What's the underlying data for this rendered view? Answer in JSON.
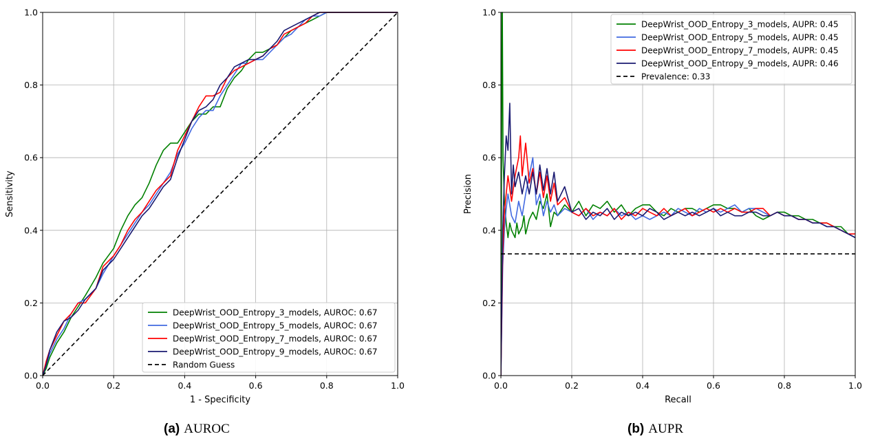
{
  "captions": {
    "a": {
      "tag": "(a)",
      "text": "AUROC"
    },
    "b": {
      "tag": "(b)",
      "text": "AUPR"
    }
  },
  "colors": {
    "green": "#008000",
    "blue": "#4169e1",
    "red": "#ff0000",
    "navy": "#191970",
    "black": "#000000",
    "grid": "#b0b0b0"
  },
  "chart_data": [
    {
      "type": "line",
      "title": "",
      "xlabel": "1 - Specificity",
      "ylabel": "Sensitivity",
      "xlim": [
        0,
        1
      ],
      "ylim": [
        0,
        1
      ],
      "xticks": [
        "0.0",
        "0.2",
        "0.4",
        "0.6",
        "0.8",
        "1.0"
      ],
      "yticks": [
        "0.0",
        "0.2",
        "0.4",
        "0.6",
        "0.8",
        "1.0"
      ],
      "grid": true,
      "legend_position": "lower-right",
      "series": [
        {
          "name": "DeepWrist_OOD_Entropy_3_models, AUROC: 0.67",
          "color": "#008000",
          "dash": false,
          "x": [
            0,
            0.01,
            0.02,
            0.04,
            0.06,
            0.08,
            0.1,
            0.12,
            0.15,
            0.17,
            0.2,
            0.22,
            0.24,
            0.26,
            0.28,
            0.3,
            0.32,
            0.34,
            0.36,
            0.38,
            0.4,
            0.42,
            0.44,
            0.46,
            0.48,
            0.5,
            0.52,
            0.54,
            0.56,
            0.58,
            0.6,
            0.62,
            0.64,
            0.66,
            0.68,
            0.7,
            0.72,
            0.74,
            0.76,
            0.78,
            0.8,
            0.82,
            1.0
          ],
          "y": [
            0,
            0.02,
            0.05,
            0.09,
            0.12,
            0.16,
            0.19,
            0.22,
            0.27,
            0.31,
            0.35,
            0.4,
            0.44,
            0.47,
            0.49,
            0.53,
            0.58,
            0.62,
            0.64,
            0.64,
            0.67,
            0.7,
            0.72,
            0.72,
            0.74,
            0.74,
            0.79,
            0.82,
            0.84,
            0.87,
            0.89,
            0.89,
            0.9,
            0.91,
            0.93,
            0.95,
            0.96,
            0.97,
            0.98,
            0.99,
            1.0,
            1.0,
            1.0
          ]
        },
        {
          "name": "DeepWrist_OOD_Entropy_5_models, AUROC: 0.67",
          "color": "#4169e1",
          "dash": false,
          "x": [
            0,
            0.01,
            0.02,
            0.04,
            0.06,
            0.08,
            0.1,
            0.12,
            0.15,
            0.17,
            0.2,
            0.22,
            0.24,
            0.26,
            0.28,
            0.3,
            0.32,
            0.34,
            0.36,
            0.38,
            0.4,
            0.42,
            0.44,
            0.46,
            0.48,
            0.5,
            0.52,
            0.54,
            0.56,
            0.58,
            0.6,
            0.62,
            0.64,
            0.66,
            0.68,
            0.7,
            0.72,
            0.74,
            0.76,
            0.78,
            0.8,
            0.82,
            1.0
          ],
          "y": [
            0,
            0.03,
            0.06,
            0.1,
            0.13,
            0.17,
            0.2,
            0.21,
            0.24,
            0.28,
            0.33,
            0.36,
            0.39,
            0.42,
            0.45,
            0.47,
            0.5,
            0.53,
            0.56,
            0.61,
            0.64,
            0.68,
            0.71,
            0.73,
            0.73,
            0.77,
            0.8,
            0.83,
            0.86,
            0.86,
            0.87,
            0.87,
            0.89,
            0.91,
            0.93,
            0.94,
            0.96,
            0.98,
            0.99,
            0.99,
            1.0,
            1.0,
            1.0
          ]
        },
        {
          "name": "DeepWrist_OOD_Entropy_7_models, AUROC: 0.67",
          "color": "#ff0000",
          "dash": false,
          "x": [
            0,
            0.01,
            0.02,
            0.04,
            0.06,
            0.08,
            0.1,
            0.12,
            0.15,
            0.17,
            0.2,
            0.22,
            0.24,
            0.26,
            0.28,
            0.3,
            0.32,
            0.34,
            0.36,
            0.38,
            0.4,
            0.42,
            0.44,
            0.46,
            0.48,
            0.5,
            0.52,
            0.54,
            0.56,
            0.58,
            0.6,
            0.62,
            0.64,
            0.66,
            0.68,
            0.7,
            0.72,
            0.74,
            0.76,
            0.78,
            0.8,
            0.82,
            1.0
          ],
          "y": [
            0,
            0.04,
            0.07,
            0.11,
            0.15,
            0.17,
            0.2,
            0.2,
            0.24,
            0.3,
            0.33,
            0.36,
            0.4,
            0.43,
            0.45,
            0.48,
            0.51,
            0.53,
            0.55,
            0.62,
            0.66,
            0.7,
            0.74,
            0.77,
            0.77,
            0.78,
            0.82,
            0.84,
            0.85,
            0.86,
            0.87,
            0.88,
            0.9,
            0.91,
            0.94,
            0.95,
            0.96,
            0.97,
            0.99,
            1.0,
            1.0,
            1.0,
            1.0
          ]
        },
        {
          "name": "DeepWrist_OOD_Entropy_9_models, AUROC: 0.67",
          "color": "#191970",
          "dash": false,
          "x": [
            0,
            0.01,
            0.02,
            0.04,
            0.06,
            0.08,
            0.1,
            0.12,
            0.15,
            0.17,
            0.2,
            0.22,
            0.24,
            0.26,
            0.28,
            0.3,
            0.32,
            0.34,
            0.36,
            0.38,
            0.4,
            0.42,
            0.44,
            0.46,
            0.48,
            0.5,
            0.52,
            0.54,
            0.56,
            0.58,
            0.6,
            0.62,
            0.64,
            0.66,
            0.68,
            0.7,
            0.72,
            0.74,
            0.76,
            0.78,
            0.8,
            0.82,
            1.0
          ],
          "y": [
            0,
            0.03,
            0.07,
            0.12,
            0.15,
            0.16,
            0.18,
            0.21,
            0.24,
            0.29,
            0.32,
            0.35,
            0.38,
            0.41,
            0.44,
            0.46,
            0.49,
            0.52,
            0.54,
            0.6,
            0.65,
            0.7,
            0.73,
            0.74,
            0.76,
            0.8,
            0.82,
            0.85,
            0.86,
            0.87,
            0.87,
            0.88,
            0.9,
            0.92,
            0.95,
            0.96,
            0.97,
            0.98,
            0.99,
            1.0,
            1.0,
            1.0,
            1.0
          ]
        },
        {
          "name": "Random Guess",
          "color": "#000000",
          "dash": true,
          "x": [
            0,
            1
          ],
          "y": [
            0,
            1
          ]
        }
      ]
    },
    {
      "type": "line",
      "title": "",
      "xlabel": "Recall",
      "ylabel": "Precision",
      "xlim": [
        0,
        1
      ],
      "ylim": [
        0,
        1
      ],
      "xticks": [
        "0.0",
        "0.2",
        "0.4",
        "0.6",
        "0.8",
        "1.0"
      ],
      "yticks": [
        "0.0",
        "0.2",
        "0.4",
        "0.6",
        "0.8",
        "1.0"
      ],
      "grid": true,
      "legend_position": "upper-right",
      "series": [
        {
          "name": "DeepWrist_OOD_Entropy_3_models, AUPR: 0.45",
          "color": "#008000",
          "dash": false,
          "x": [
            0,
            0.003,
            0.004,
            0.006,
            0.01,
            0.015,
            0.02,
            0.025,
            0.03,
            0.04,
            0.045,
            0.05,
            0.06,
            0.065,
            0.07,
            0.08,
            0.09,
            0.1,
            0.11,
            0.12,
            0.13,
            0.14,
            0.15,
            0.16,
            0.18,
            0.2,
            0.22,
            0.24,
            0.26,
            0.28,
            0.3,
            0.32,
            0.34,
            0.36,
            0.38,
            0.4,
            0.42,
            0.44,
            0.46,
            0.48,
            0.5,
            0.52,
            0.54,
            0.56,
            0.58,
            0.6,
            0.62,
            0.64,
            0.66,
            0.68,
            0.7,
            0.72,
            0.74,
            0.76,
            0.78,
            0.8,
            0.82,
            0.84,
            0.86,
            0.88,
            0.9,
            0.92,
            0.94,
            0.96,
            0.98,
            1.0
          ],
          "y": [
            0,
            1.0,
            1.0,
            0.6,
            0.48,
            0.42,
            0.38,
            0.42,
            0.4,
            0.38,
            0.42,
            0.39,
            0.41,
            0.44,
            0.39,
            0.43,
            0.45,
            0.43,
            0.48,
            0.46,
            0.5,
            0.41,
            0.45,
            0.44,
            0.47,
            0.45,
            0.48,
            0.44,
            0.47,
            0.46,
            0.48,
            0.45,
            0.47,
            0.44,
            0.46,
            0.47,
            0.47,
            0.45,
            0.44,
            0.46,
            0.45,
            0.46,
            0.46,
            0.45,
            0.46,
            0.47,
            0.47,
            0.46,
            0.46,
            0.45,
            0.46,
            0.44,
            0.43,
            0.44,
            0.45,
            0.45,
            0.44,
            0.44,
            0.43,
            0.43,
            0.42,
            0.42,
            0.41,
            0.41,
            0.39,
            0.38
          ]
        },
        {
          "name": "DeepWrist_OOD_Entropy_5_models, AUPR: 0.45",
          "color": "#4169e1",
          "dash": false,
          "x": [
            0,
            0.005,
            0.01,
            0.015,
            0.02,
            0.03,
            0.04,
            0.05,
            0.06,
            0.07,
            0.08,
            0.09,
            0.1,
            0.11,
            0.12,
            0.13,
            0.14,
            0.15,
            0.16,
            0.18,
            0.2,
            0.22,
            0.24,
            0.26,
            0.28,
            0.3,
            0.32,
            0.34,
            0.36,
            0.38,
            0.4,
            0.42,
            0.44,
            0.46,
            0.48,
            0.5,
            0.52,
            0.54,
            0.56,
            0.58,
            0.6,
            0.62,
            0.64,
            0.66,
            0.68,
            0.7,
            0.72,
            0.74,
            0.76,
            0.78,
            0.8,
            0.82,
            0.84,
            0.86,
            0.88,
            0.9,
            0.92,
            0.94,
            0.96,
            0.98,
            1.0
          ],
          "y": [
            0,
            0.3,
            0.4,
            0.46,
            0.5,
            0.44,
            0.42,
            0.48,
            0.44,
            0.5,
            0.55,
            0.6,
            0.47,
            0.5,
            0.44,
            0.48,
            0.45,
            0.47,
            0.44,
            0.46,
            0.45,
            0.44,
            0.46,
            0.43,
            0.45,
            0.44,
            0.46,
            0.44,
            0.45,
            0.43,
            0.44,
            0.43,
            0.44,
            0.45,
            0.44,
            0.46,
            0.45,
            0.44,
            0.46,
            0.45,
            0.46,
            0.45,
            0.46,
            0.47,
            0.45,
            0.46,
            0.46,
            0.45,
            0.44,
            0.45,
            0.44,
            0.44,
            0.43,
            0.43,
            0.42,
            0.42,
            0.41,
            0.41,
            0.4,
            0.39,
            0.38
          ]
        },
        {
          "name": "DeepWrist_OOD_Entropy_7_models, AUPR: 0.45",
          "color": "#ff0000",
          "dash": false,
          "x": [
            0,
            0.005,
            0.01,
            0.015,
            0.02,
            0.03,
            0.04,
            0.05,
            0.055,
            0.06,
            0.07,
            0.08,
            0.09,
            0.1,
            0.11,
            0.12,
            0.13,
            0.14,
            0.15,
            0.16,
            0.18,
            0.2,
            0.22,
            0.24,
            0.26,
            0.28,
            0.3,
            0.32,
            0.34,
            0.36,
            0.38,
            0.4,
            0.42,
            0.44,
            0.46,
            0.48,
            0.5,
            0.52,
            0.54,
            0.56,
            0.58,
            0.6,
            0.62,
            0.64,
            0.66,
            0.68,
            0.7,
            0.72,
            0.74,
            0.76,
            0.78,
            0.8,
            0.82,
            0.84,
            0.86,
            0.88,
            0.9,
            0.92,
            0.94,
            0.96,
            0.98,
            1.0
          ],
          "y": [
            0,
            0.33,
            0.45,
            0.5,
            0.55,
            0.48,
            0.55,
            0.6,
            0.66,
            0.55,
            0.64,
            0.53,
            0.57,
            0.5,
            0.56,
            0.49,
            0.55,
            0.48,
            0.53,
            0.47,
            0.49,
            0.45,
            0.44,
            0.46,
            0.44,
            0.45,
            0.44,
            0.46,
            0.43,
            0.45,
            0.44,
            0.46,
            0.45,
            0.44,
            0.46,
            0.44,
            0.45,
            0.46,
            0.44,
            0.45,
            0.46,
            0.45,
            0.46,
            0.45,
            0.46,
            0.45,
            0.45,
            0.46,
            0.46,
            0.44,
            0.45,
            0.44,
            0.44,
            0.43,
            0.43,
            0.42,
            0.42,
            0.42,
            0.41,
            0.4,
            0.39,
            0.39
          ]
        },
        {
          "name": "DeepWrist_OOD_Entropy_9_models, AUPR: 0.46",
          "color": "#191970",
          "dash": false,
          "x": [
            0,
            0.005,
            0.01,
            0.015,
            0.02,
            0.025,
            0.03,
            0.035,
            0.04,
            0.05,
            0.06,
            0.07,
            0.08,
            0.09,
            0.1,
            0.11,
            0.12,
            0.13,
            0.14,
            0.15,
            0.16,
            0.18,
            0.2,
            0.22,
            0.24,
            0.26,
            0.28,
            0.3,
            0.32,
            0.34,
            0.36,
            0.38,
            0.4,
            0.42,
            0.44,
            0.46,
            0.48,
            0.5,
            0.52,
            0.54,
            0.56,
            0.58,
            0.6,
            0.62,
            0.64,
            0.66,
            0.68,
            0.7,
            0.72,
            0.74,
            0.76,
            0.78,
            0.8,
            0.82,
            0.84,
            0.86,
            0.88,
            0.9,
            0.92,
            0.94,
            0.96,
            0.98,
            1.0
          ],
          "y": [
            0,
            0.4,
            0.55,
            0.66,
            0.62,
            0.75,
            0.5,
            0.58,
            0.52,
            0.56,
            0.5,
            0.55,
            0.5,
            0.56,
            0.5,
            0.58,
            0.51,
            0.57,
            0.5,
            0.56,
            0.48,
            0.52,
            0.45,
            0.46,
            0.43,
            0.45,
            0.44,
            0.46,
            0.43,
            0.45,
            0.44,
            0.45,
            0.44,
            0.46,
            0.45,
            0.43,
            0.44,
            0.45,
            0.44,
            0.45,
            0.44,
            0.45,
            0.46,
            0.44,
            0.45,
            0.44,
            0.44,
            0.45,
            0.45,
            0.44,
            0.44,
            0.45,
            0.44,
            0.44,
            0.43,
            0.43,
            0.42,
            0.42,
            0.41,
            0.41,
            0.4,
            0.39,
            0.38
          ]
        },
        {
          "name": "Prevalence: 0.33",
          "color": "#000000",
          "dash": true,
          "x": [
            0,
            1
          ],
          "y": [
            0.335,
            0.335
          ]
        }
      ]
    }
  ]
}
